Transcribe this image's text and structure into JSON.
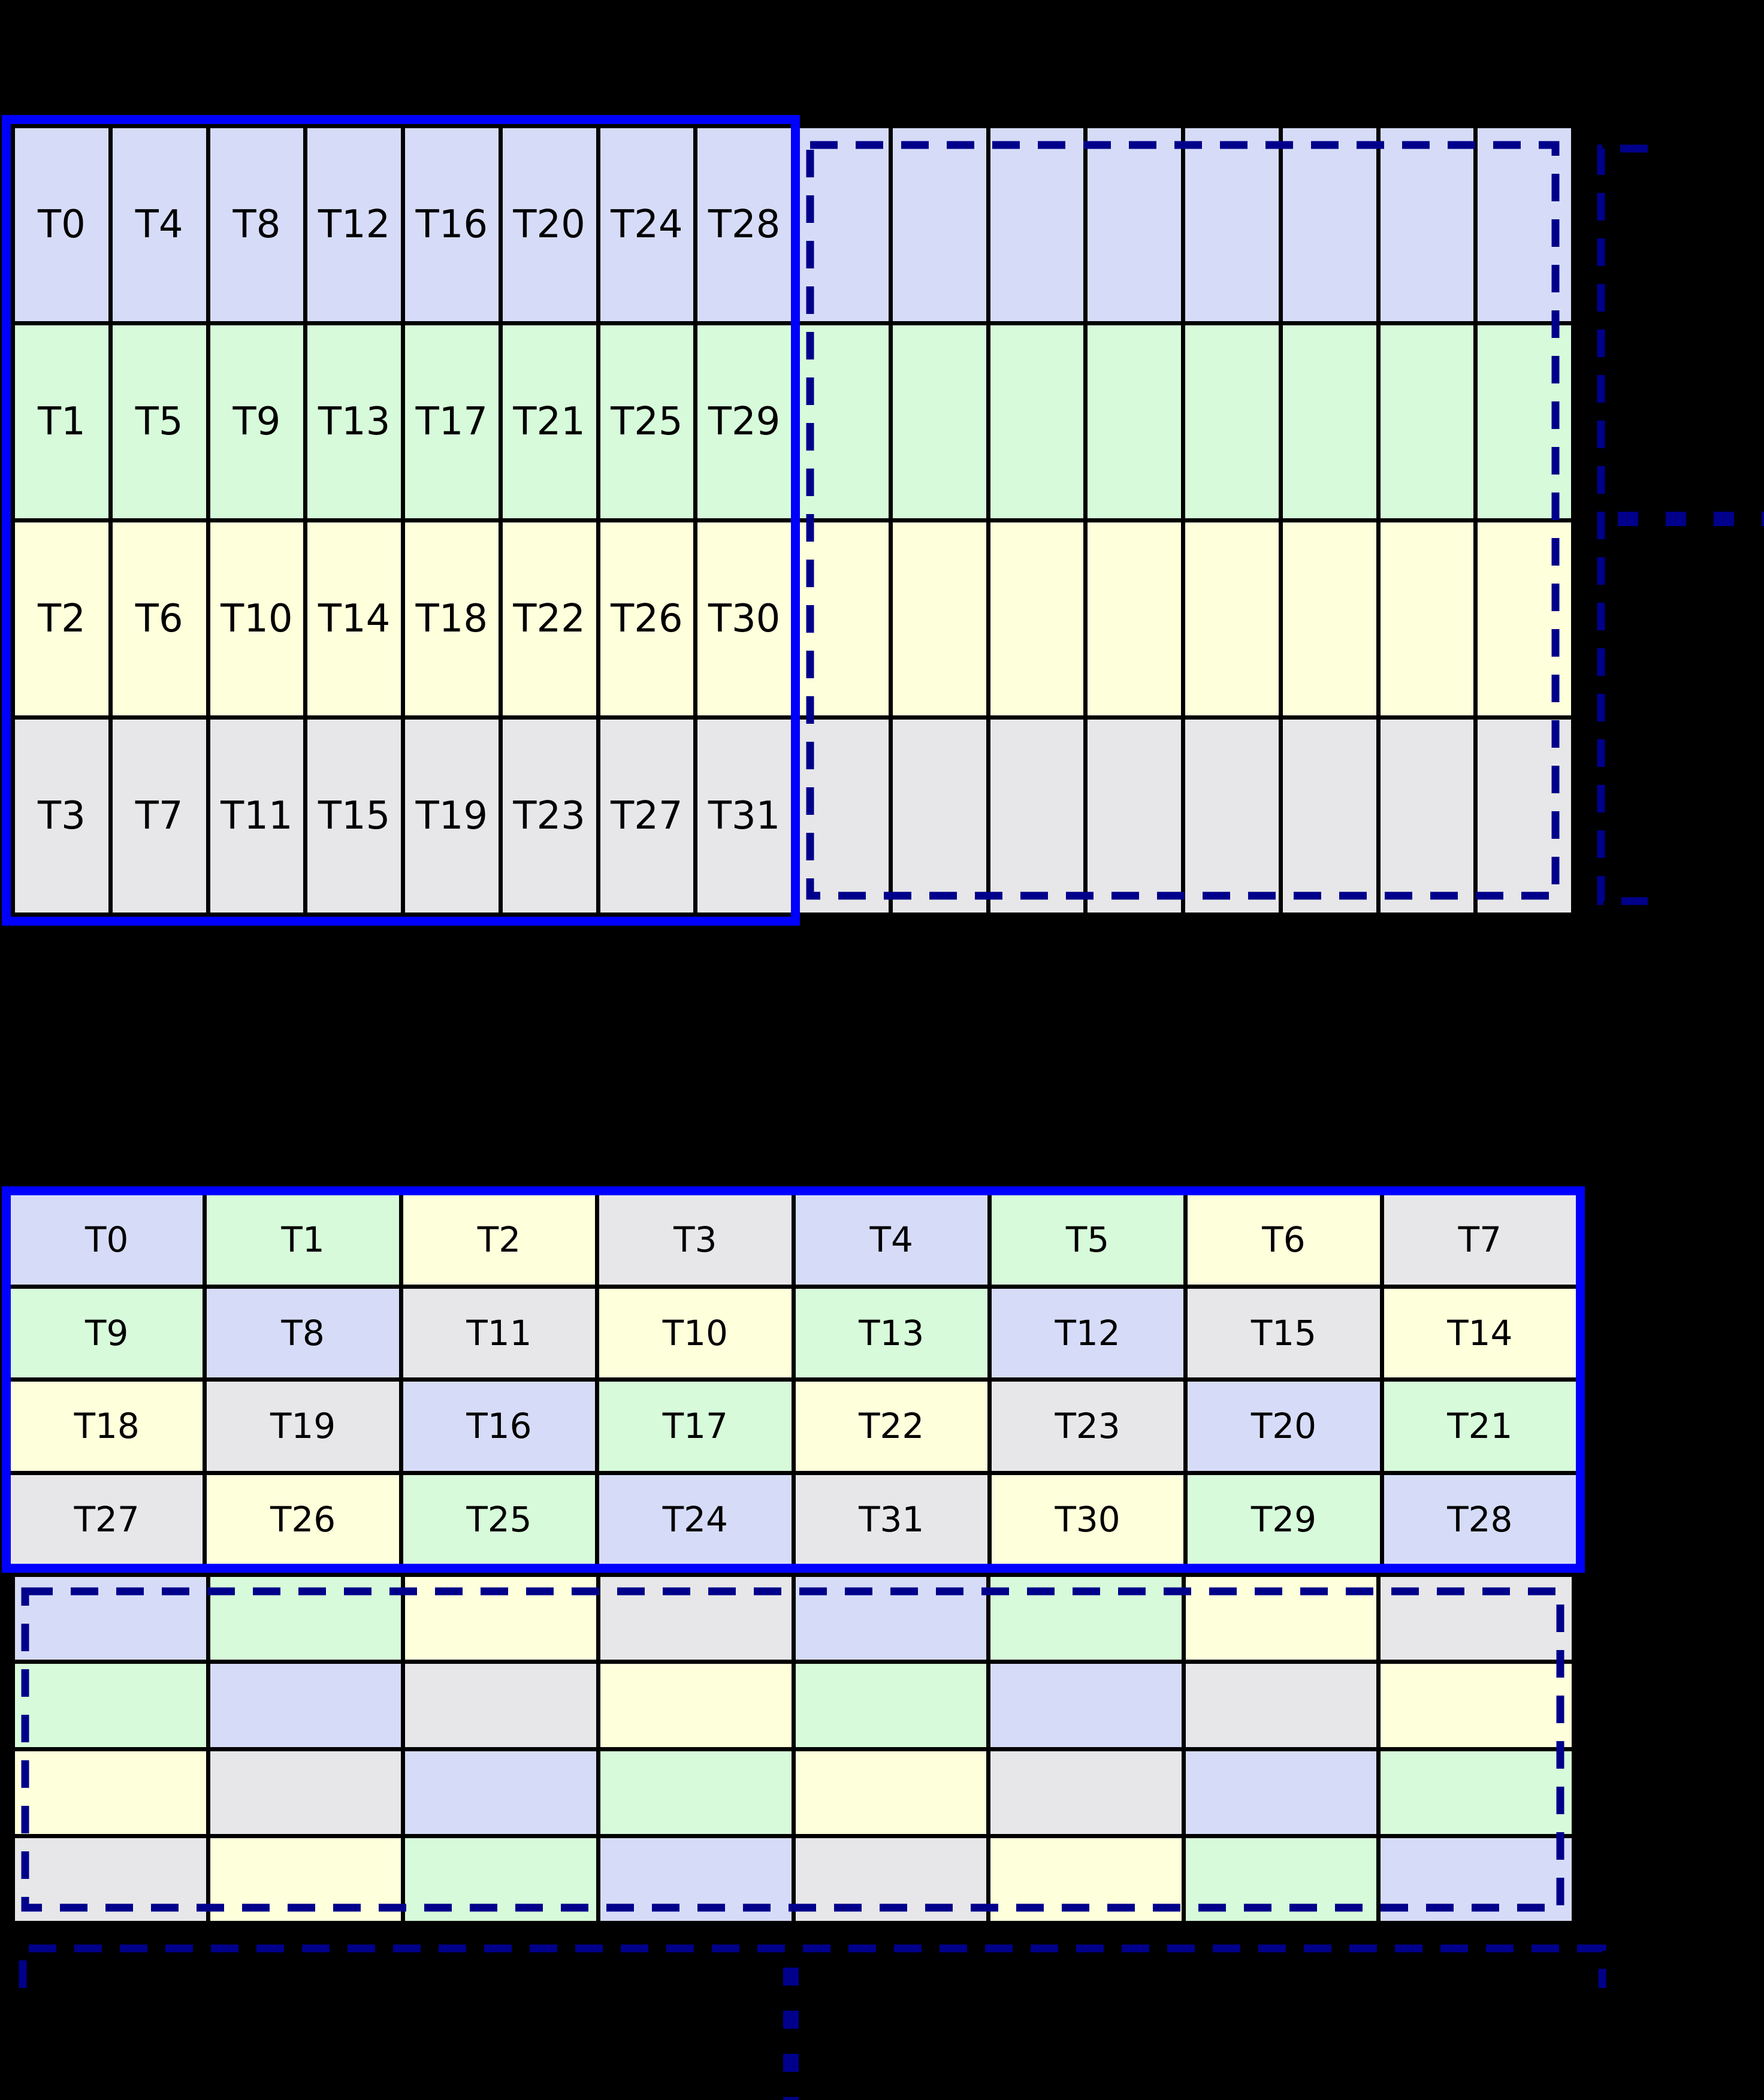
{
  "colors": {
    "blue": "#d6dcf8",
    "green": "#d7fbda",
    "yellow": "#feffdb",
    "gray": "#e7e7e9",
    "warp_outline": "#0000ff",
    "ghost_outline": "#00008b",
    "gridline": "#000000",
    "background": "#000000",
    "label": "#000000"
  },
  "top_diagram": {
    "labeled_columns": 8,
    "ghost_columns": 8,
    "rows": [
      {
        "color": "blue",
        "labels": [
          "T0",
          "T4",
          "T8",
          "T12",
          "T16",
          "T20",
          "T24",
          "T28"
        ]
      },
      {
        "color": "green",
        "labels": [
          "T1",
          "T5",
          "T9",
          "T13",
          "T17",
          "T21",
          "T25",
          "T29"
        ]
      },
      {
        "color": "yellow",
        "labels": [
          "T2",
          "T6",
          "T10",
          "T14",
          "T18",
          "T22",
          "T26",
          "T30"
        ]
      },
      {
        "color": "gray",
        "labels": [
          "T3",
          "T7",
          "T11",
          "T15",
          "T19",
          "T23",
          "T27",
          "T31"
        ]
      }
    ]
  },
  "bottom_diagram": {
    "rows": [
      {
        "cells": [
          {
            "label": "T0",
            "color": "blue"
          },
          {
            "label": "T1",
            "color": "green"
          },
          {
            "label": "T2",
            "color": "yellow"
          },
          {
            "label": "T3",
            "color": "gray"
          },
          {
            "label": "T4",
            "color": "blue"
          },
          {
            "label": "T5",
            "color": "green"
          },
          {
            "label": "T6",
            "color": "yellow"
          },
          {
            "label": "T7",
            "color": "gray"
          }
        ]
      },
      {
        "cells": [
          {
            "label": "T9",
            "color": "green"
          },
          {
            "label": "T8",
            "color": "blue"
          },
          {
            "label": "T11",
            "color": "gray"
          },
          {
            "label": "T10",
            "color": "yellow"
          },
          {
            "label": "T13",
            "color": "green"
          },
          {
            "label": "T12",
            "color": "blue"
          },
          {
            "label": "T15",
            "color": "gray"
          },
          {
            "label": "T14",
            "color": "yellow"
          }
        ]
      },
      {
        "cells": [
          {
            "label": "T18",
            "color": "yellow"
          },
          {
            "label": "T19",
            "color": "gray"
          },
          {
            "label": "T16",
            "color": "blue"
          },
          {
            "label": "T17",
            "color": "green"
          },
          {
            "label": "T22",
            "color": "yellow"
          },
          {
            "label": "T23",
            "color": "gray"
          },
          {
            "label": "T20",
            "color": "blue"
          },
          {
            "label": "T21",
            "color": "green"
          }
        ]
      },
      {
        "cells": [
          {
            "label": "T27",
            "color": "gray"
          },
          {
            "label": "T26",
            "color": "yellow"
          },
          {
            "label": "T25",
            "color": "green"
          },
          {
            "label": "T24",
            "color": "blue"
          },
          {
            "label": "T31",
            "color": "gray"
          },
          {
            "label": "T30",
            "color": "yellow"
          },
          {
            "label": "T29",
            "color": "green"
          },
          {
            "label": "T28",
            "color": "blue"
          }
        ]
      }
    ],
    "ghost_rows": [
      [
        "blue",
        "green",
        "yellow",
        "gray",
        "blue",
        "green",
        "yellow",
        "gray"
      ],
      [
        "green",
        "blue",
        "gray",
        "yellow",
        "green",
        "blue",
        "gray",
        "yellow"
      ],
      [
        "yellow",
        "gray",
        "blue",
        "green",
        "yellow",
        "gray",
        "blue",
        "green"
      ],
      [
        "gray",
        "yellow",
        "green",
        "blue",
        "gray",
        "yellow",
        "green",
        "blue"
      ]
    ]
  }
}
